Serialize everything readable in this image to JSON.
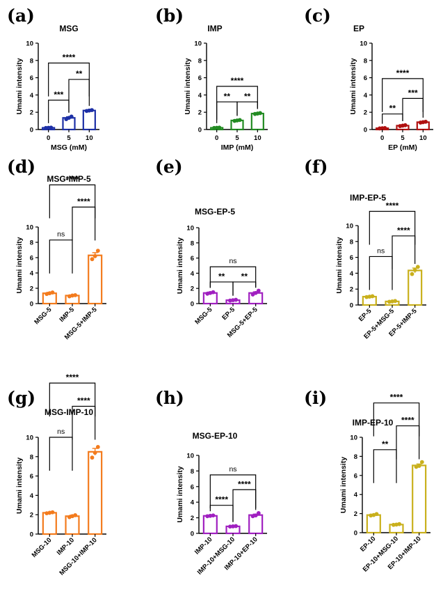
{
  "figure": {
    "colors": {
      "blue": "#1c2fa6",
      "green": "#228b22",
      "darkred": "#b01010",
      "orange": "#f37b1d",
      "purple": "#a020c0",
      "gold": "#c9b01c"
    }
  },
  "chart_data": [
    {
      "panel": "(a)",
      "type": "bar",
      "title": "MSG",
      "ylabel": "Umami intensity",
      "xlabel": "MSG (mM)",
      "ylim": [
        0,
        10
      ],
      "yticks": [
        0,
        2,
        4,
        6,
        8,
        10
      ],
      "categories": [
        "0",
        "5",
        "10"
      ],
      "rotate_labels": false,
      "values": [
        0.2,
        1.35,
        2.2
      ],
      "errors": [
        0.05,
        0.12,
        0.05
      ],
      "points": [
        [
          0.18,
          0.2,
          0.22
        ],
        [
          1.2,
          1.35,
          1.5
        ],
        [
          2.15,
          2.2,
          2.25
        ]
      ],
      "color_key": "blue",
      "comparisons": [
        {
          "from": 0,
          "to": 1,
          "label": "***",
          "y": 3.4
        },
        {
          "from": 1,
          "to": 2,
          "label": "**",
          "y": 5.8
        },
        {
          "from": 0,
          "to": 2,
          "label": "****",
          "y": 7.7
        }
      ]
    },
    {
      "panel": "(b)",
      "type": "bar",
      "title": "IMP",
      "ylabel": "Umami intensity",
      "xlabel": "IMP (mM)",
      "ylim": [
        0,
        10
      ],
      "yticks": [
        0,
        2,
        4,
        6,
        8,
        10
      ],
      "categories": [
        "0",
        "5",
        "10"
      ],
      "rotate_labels": false,
      "values": [
        0.2,
        1.05,
        1.85
      ],
      "errors": [
        0.05,
        0.05,
        0.05
      ],
      "points": [
        [
          0.18,
          0.2,
          0.22
        ],
        [
          1.0,
          1.05,
          1.1
        ],
        [
          1.8,
          1.85,
          1.9
        ]
      ],
      "color_key": "green",
      "comparisons": [
        {
          "from": 0,
          "to": 1,
          "label": "**",
          "y": 3.2
        },
        {
          "from": 1,
          "to": 2,
          "label": "**",
          "y": 3.2
        },
        {
          "from": 0,
          "to": 2,
          "label": "****",
          "y": 5.0
        }
      ]
    },
    {
      "panel": "(c)",
      "type": "bar",
      "title": "EP",
      "ylabel": "Umami intensity",
      "xlabel": "EP (mM)",
      "ylim": [
        0,
        10
      ],
      "yticks": [
        0,
        2,
        4,
        6,
        8,
        10
      ],
      "categories": [
        "0",
        "5",
        "10"
      ],
      "rotate_labels": false,
      "values": [
        0.15,
        0.45,
        0.85
      ],
      "errors": [
        0.03,
        0.04,
        0.04
      ],
      "points": [
        [
          0.13,
          0.15,
          0.17
        ],
        [
          0.4,
          0.45,
          0.5
        ],
        [
          0.8,
          0.85,
          0.9
        ]
      ],
      "color_key": "darkred",
      "comparisons": [
        {
          "from": 0,
          "to": 1,
          "label": "**",
          "y": 1.8
        },
        {
          "from": 1,
          "to": 2,
          "label": "***",
          "y": 3.6
        },
        {
          "from": 0,
          "to": 2,
          "label": "****",
          "y": 5.9
        }
      ]
    },
    {
      "panel": "(d)",
      "type": "bar",
      "title": "MSG-IMP-5",
      "ylabel": "Umami intensity",
      "xlabel": "",
      "ylim": [
        0,
        10
      ],
      "yticks": [
        0,
        2,
        4,
        6,
        8,
        10
      ],
      "categories": [
        "MSG-5",
        "IMP-5",
        "MSG-5+IMP-5"
      ],
      "rotate_labels": true,
      "values": [
        1.35,
        1.05,
        6.3
      ],
      "errors": [
        0.12,
        0.08,
        0.35
      ],
      "points": [
        [
          1.25,
          1.35,
          1.45
        ],
        [
          0.95,
          1.05,
          1.1
        ],
        [
          5.8,
          6.2,
          6.9
        ]
      ],
      "color_key": "orange",
      "comparisons": [
        {
          "from": 0,
          "to": 1,
          "label": "ns",
          "y": 8.3
        },
        {
          "from": 1,
          "to": 2,
          "label": "****",
          "y": 12.6
        },
        {
          "from": 0,
          "to": 2,
          "label": "****",
          "y": 15.5
        }
      ]
    },
    {
      "panel": "(e)",
      "type": "bar",
      "title": "MSG-EP-5",
      "ylabel": "Umami intensity",
      "xlabel": "",
      "ylim": [
        0,
        10
      ],
      "yticks": [
        0,
        2,
        4,
        6,
        8,
        10
      ],
      "categories": [
        "MSG-5",
        "EP-5",
        "MSG-5+EP-5"
      ],
      "rotate_labels": true,
      "values": [
        1.4,
        0.45,
        1.4
      ],
      "errors": [
        0.12,
        0.04,
        0.15
      ],
      "points": [
        [
          1.3,
          1.4,
          1.5
        ],
        [
          0.4,
          0.45,
          0.5
        ],
        [
          1.2,
          1.4,
          1.7
        ]
      ],
      "color_key": "purple",
      "comparisons": [
        {
          "from": 0,
          "to": 1,
          "label": "**",
          "y": 2.85
        },
        {
          "from": 1,
          "to": 2,
          "label": "**",
          "y": 2.85
        },
        {
          "from": 0,
          "to": 2,
          "label": "ns",
          "y": 4.85
        }
      ]
    },
    {
      "panel": "(f)",
      "type": "bar",
      "title": "IMP-EP-5",
      "ylabel": "Umami intensity",
      "xlabel": "",
      "ylim": [
        0,
        10
      ],
      "yticks": [
        0,
        2,
        4,
        6,
        8,
        10
      ],
      "categories": [
        "EP-5",
        "EP-5+MSG-5",
        "EP-5+IMP-5"
      ],
      "rotate_labels": true,
      "values": [
        1.05,
        0.45,
        4.35
      ],
      "errors": [
        0.06,
        0.04,
        0.3
      ],
      "points": [
        [
          1.0,
          1.05,
          1.1
        ],
        [
          0.4,
          0.45,
          0.5
        ],
        [
          3.9,
          4.4,
          4.8
        ]
      ],
      "color_key": "gold",
      "comparisons": [
        {
          "from": 0,
          "to": 1,
          "label": "ns",
          "y": 6.1
        },
        {
          "from": 1,
          "to": 2,
          "label": "****",
          "y": 8.7
        },
        {
          "from": 0,
          "to": 2,
          "label": "****",
          "y": 11.8
        }
      ]
    },
    {
      "panel": "(g)",
      "type": "bar",
      "title": "MSG-IMP-10",
      "ylabel": "Umami intensity",
      "xlabel": "",
      "ylim": [
        0,
        10
      ],
      "yticks": [
        0,
        2,
        4,
        6,
        8,
        10
      ],
      "categories": [
        "MSG-10",
        "IMP-10",
        "MSG-10+IMP-10"
      ],
      "rotate_labels": true,
      "values": [
        2.2,
        1.85,
        8.5
      ],
      "errors": [
        0.05,
        0.1,
        0.35
      ],
      "points": [
        [
          2.15,
          2.2,
          2.25
        ],
        [
          1.75,
          1.85,
          1.95
        ],
        [
          7.9,
          8.4,
          9.0
        ]
      ],
      "color_key": "orange",
      "comparisons": [
        {
          "from": 0,
          "to": 1,
          "label": "ns",
          "y": 10.0
        },
        {
          "from": 1,
          "to": 2,
          "label": "****",
          "y": 13.2
        },
        {
          "from": 0,
          "to": 2,
          "label": "****",
          "y": 15.6
        }
      ]
    },
    {
      "panel": "(h)",
      "type": "bar",
      "title": "MSG-EP-10",
      "ylabel": "Umami intensity",
      "xlabel": "",
      "ylim": [
        0,
        10
      ],
      "yticks": [
        0,
        2,
        4,
        6,
        8,
        10
      ],
      "categories": [
        "IMP-10",
        "IMP-10+MSG-10",
        "IMP-10+EP-10"
      ],
      "rotate_labels": true,
      "values": [
        2.25,
        0.9,
        2.35
      ],
      "errors": [
        0.05,
        0.03,
        0.12
      ],
      "points": [
        [
          2.2,
          2.25,
          2.3
        ],
        [
          0.87,
          0.9,
          0.93
        ],
        [
          2.2,
          2.3,
          2.6
        ]
      ],
      "color_key": "purple",
      "comparisons": [
        {
          "from": 0,
          "to": 1,
          "label": "****",
          "y": 3.6
        },
        {
          "from": 1,
          "to": 2,
          "label": "****",
          "y": 5.6
        },
        {
          "from": 0,
          "to": 2,
          "label": "ns",
          "y": 7.5
        }
      ]
    },
    {
      "panel": "(i)",
      "type": "bar",
      "title": "IMP-EP-10",
      "ylabel": "Umami intensity",
      "xlabel": "",
      "ylim": [
        0,
        10
      ],
      "yticks": [
        0,
        2,
        4,
        6,
        8,
        10
      ],
      "categories": [
        "EP-10",
        "EP-10+MSG-10",
        "EP-10+IMP-10"
      ],
      "rotate_labels": true,
      "values": [
        1.85,
        0.85,
        7.05
      ],
      "errors": [
        0.08,
        0.04,
        0.15
      ],
      "points": [
        [
          1.8,
          1.85,
          1.95
        ],
        [
          0.82,
          0.85,
          0.9
        ],
        [
          6.9,
          7.0,
          7.4
        ]
      ],
      "color_key": "gold",
      "comparisons": [
        {
          "from": 0,
          "to": 1,
          "label": "**",
          "y": 8.7
        },
        {
          "from": 1,
          "to": 2,
          "label": "****",
          "y": 11.2
        },
        {
          "from": 0,
          "to": 2,
          "label": "****",
          "y": 13.6
        }
      ]
    }
  ]
}
